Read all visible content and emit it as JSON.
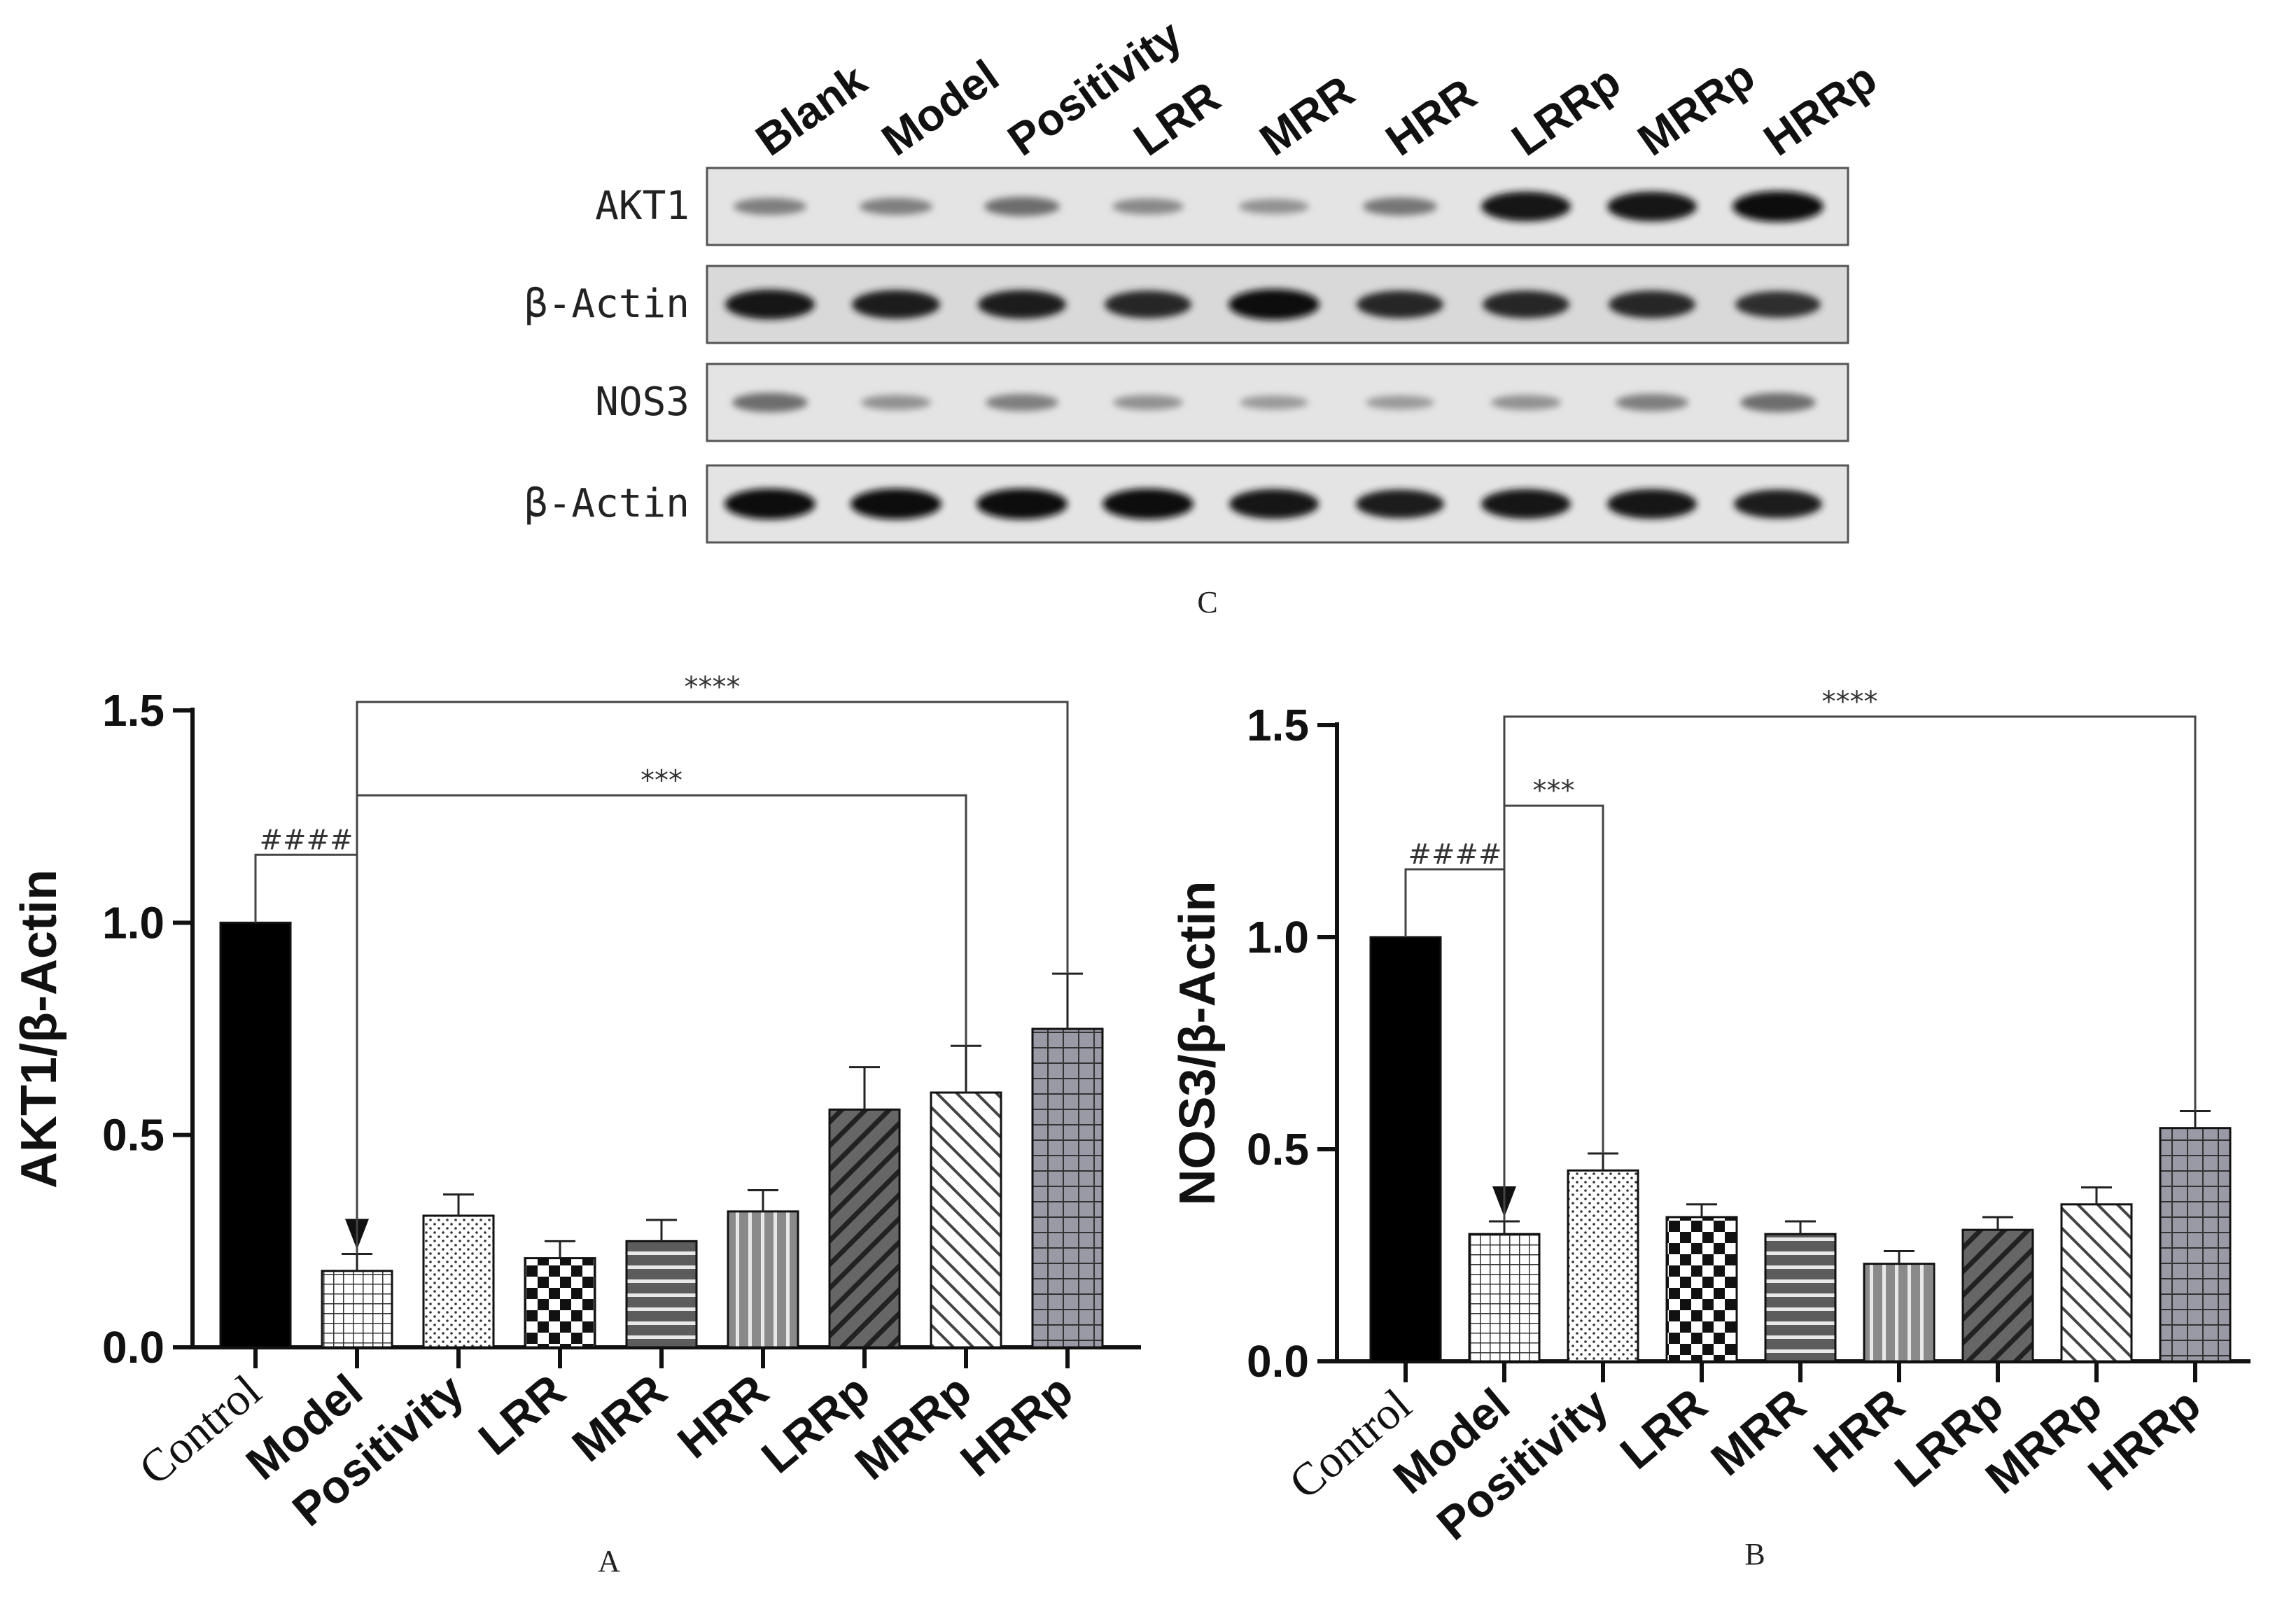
{
  "blot": {
    "panel_label": "C",
    "lanes": [
      "Blank",
      "Model",
      "Positivity",
      "LRR",
      "MRR",
      "HRR",
      "LRRp",
      "MRRp",
      "HRRp"
    ],
    "rows": [
      {
        "label": "AKT1",
        "intensity": [
          0.35,
          0.35,
          0.45,
          0.3,
          0.25,
          0.4,
          0.95,
          0.95,
          1.0
        ]
      },
      {
        "label": "β-Actin",
        "intensity": [
          0.95,
          0.9,
          0.9,
          0.85,
          1.0,
          0.85,
          0.85,
          0.85,
          0.8
        ]
      },
      {
        "label": "NOS3",
        "intensity": [
          0.45,
          0.25,
          0.35,
          0.25,
          0.2,
          0.2,
          0.25,
          0.35,
          0.45
        ]
      },
      {
        "label": "β-Actin",
        "intensity": [
          1.0,
          1.0,
          1.0,
          1.0,
          0.95,
          0.9,
          0.95,
          0.95,
          0.9
        ]
      }
    ]
  },
  "chart_data": [
    {
      "type": "bar",
      "panel_label": "A",
      "ylabel": "AKT1/β-Actin",
      "ylim": [
        0,
        1.5
      ],
      "yticks": [
        "0.0",
        "0.5",
        "1.0",
        "1.5"
      ],
      "categories": [
        "Control",
        "Model",
        "Positivity",
        "LRR",
        "MRR",
        "HRR",
        "LRRp",
        "MRRp",
        "HRRp"
      ],
      "values": [
        1.0,
        0.18,
        0.31,
        0.21,
        0.25,
        0.32,
        0.56,
        0.6,
        0.75
      ],
      "errors": [
        0.0,
        0.04,
        0.05,
        0.04,
        0.05,
        0.05,
        0.1,
        0.11,
        0.13
      ],
      "patterns": [
        "solid",
        "grid",
        "dots",
        "checker",
        "hstripes",
        "vstripes",
        "diag",
        "backdiag",
        "grid-large"
      ],
      "brackets": [
        {
          "from": 0,
          "to": 1,
          "label": "####",
          "y": 1.16
        },
        {
          "from": 1,
          "to": 7,
          "label": "***",
          "y": 1.3
        },
        {
          "from": 1,
          "to": 8,
          "label": "****",
          "y": 1.52
        }
      ]
    },
    {
      "type": "bar",
      "panel_label": "B",
      "ylabel": "NOS3/β-Actin",
      "ylim": [
        0,
        1.5
      ],
      "yticks": [
        "0.0",
        "0.5",
        "1.0",
        "1.5"
      ],
      "categories": [
        "Control",
        "Model",
        "Positivity",
        "LRR",
        "MRR",
        "HRR",
        "LRRp",
        "MRRp",
        "HRRp"
      ],
      "values": [
        1.0,
        0.3,
        0.45,
        0.34,
        0.3,
        0.23,
        0.31,
        0.37,
        0.55
      ],
      "errors": [
        0.0,
        0.03,
        0.04,
        0.03,
        0.03,
        0.03,
        0.03,
        0.04,
        0.04
      ],
      "patterns": [
        "solid",
        "grid",
        "dots",
        "checker",
        "hstripes",
        "vstripes",
        "diag",
        "backdiag",
        "grid-large"
      ],
      "brackets": [
        {
          "from": 0,
          "to": 1,
          "label": "####",
          "y": 1.16
        },
        {
          "from": 1,
          "to": 2,
          "label": "***",
          "y": 1.31
        },
        {
          "from": 1,
          "to": 8,
          "label": "****",
          "y": 1.52
        }
      ]
    }
  ]
}
